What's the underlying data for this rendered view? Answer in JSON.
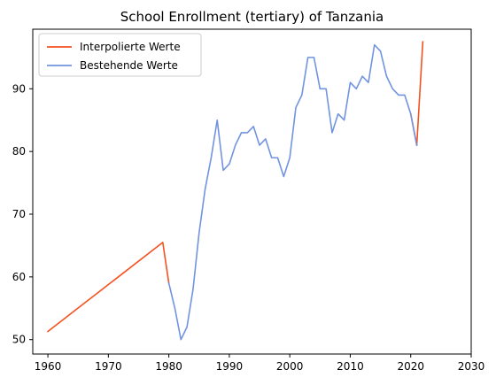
{
  "chart_data": {
    "type": "line",
    "title": "School Enrollment (tertiary) of Tanzania",
    "xlabel": "",
    "ylabel": "",
    "xlim": [
      1957.5,
      2030
    ],
    "ylim": [
      47.7,
      99.5
    ],
    "xticks": [
      1960,
      1970,
      1980,
      1990,
      2000,
      2010,
      2020,
      2030
    ],
    "yticks": [
      50,
      60,
      70,
      80,
      90
    ],
    "grid": false,
    "legend_position": "top-left",
    "series": [
      {
        "name": "Interpolierte Werte",
        "color": "#f4511e",
        "segments": [
          {
            "x": [
              1960,
              1979,
              1980
            ],
            "y": [
              51.3,
              65.5,
              59
            ]
          },
          {
            "x": [
              2020,
              2021,
              2022
            ],
            "y": [
              86,
              81,
              97.5
            ]
          }
        ]
      },
      {
        "name": "Bestehende Werte",
        "color": "#7094e0",
        "segments": [
          {
            "x": [
              1980,
              1981,
              1982,
              1983,
              1984,
              1985,
              1986,
              1987,
              1988,
              1989,
              1990,
              1991,
              1992,
              1993,
              1994,
              1995,
              1996,
              1997,
              1998,
              1999,
              2000,
              2001,
              2002,
              2003,
              2004,
              2005,
              2006,
              2007,
              2008,
              2009,
              2010,
              2011,
              2012,
              2013,
              2014,
              2015,
              2016,
              2017,
              2018,
              2019,
              2020,
              2021
            ],
            "y": [
              59,
              55,
              50,
              52,
              58,
              67,
              74,
              79,
              85,
              77,
              78,
              81,
              83,
              83,
              84,
              81,
              82,
              79,
              79,
              76,
              79,
              87,
              89,
              95,
              95,
              90,
              90,
              83,
              86,
              85,
              91,
              90,
              92,
              91,
              97,
              96,
              92,
              90,
              89,
              89,
              86,
              81
            ]
          }
        ]
      }
    ]
  }
}
